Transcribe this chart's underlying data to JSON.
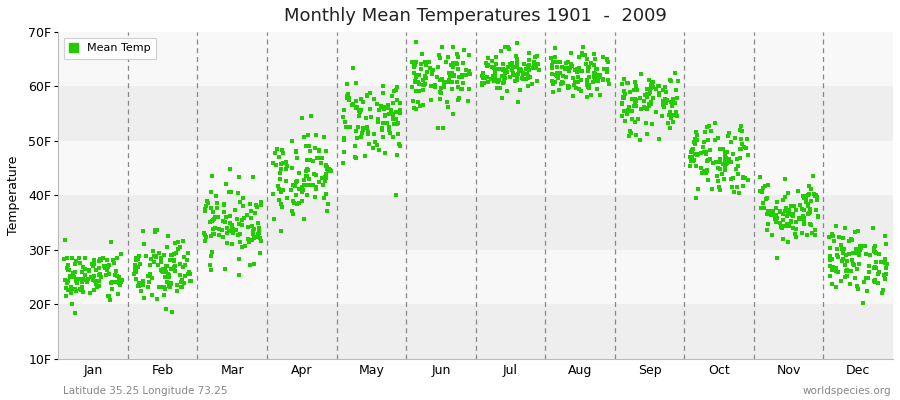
{
  "title": "Monthly Mean Temperatures 1901  -  2009",
  "ylabel": "Temperature",
  "bottom_left_text": "Latitude 35.25 Longitude 73.25",
  "bottom_right_text": "worldspecies.org",
  "legend_label": "Mean Temp",
  "dot_color": "#22cc00",
  "band_colors": [
    "#eeeeee",
    "#f8f8f8"
  ],
  "ylim": [
    10,
    70
  ],
  "ytick_labels": [
    "10F",
    "20F",
    "30F",
    "40F",
    "50F",
    "60F",
    "70F"
  ],
  "ytick_values": [
    10,
    20,
    30,
    40,
    50,
    60,
    70
  ],
  "months": [
    "Jan",
    "Feb",
    "Mar",
    "Apr",
    "May",
    "Jun",
    "Jul",
    "Aug",
    "Sep",
    "Oct",
    "Nov",
    "Dec"
  ],
  "monthly_mean_F": [
    25,
    26,
    35,
    44,
    54,
    61,
    63,
    62,
    57,
    47,
    37,
    28
  ],
  "monthly_std_F": [
    2.5,
    3.5,
    3.5,
    4.0,
    4.0,
    3.0,
    2.0,
    2.0,
    3.0,
    3.5,
    3.0,
    3.0
  ],
  "n_years": 109,
  "figsize": [
    9.0,
    4.0
  ],
  "dpi": 100
}
